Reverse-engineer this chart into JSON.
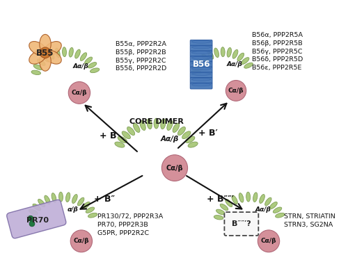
{
  "bg_color": "#ffffff",
  "scaffold_color": "#a8c878",
  "scaffold_color_dark": "#7a9a50",
  "scaffold_color_light": "#c8e098",
  "catalytic_color": "#d4909a",
  "catalytic_edge": "#b06878",
  "b55_color_light": "#f0b878",
  "b55_color_dark": "#c87830",
  "b55_edge": "#a85820",
  "b56_color": "#4878b8",
  "b56_edge": "#2858a0",
  "pr70_color": "#c0b0d8",
  "pr70_edge": "#8070a8",
  "pr70_dot": "#207840",
  "text_color": "#111111",
  "arrow_color": "#111111",
  "title_core": "CORE DIMER",
  "b55_label": "B55",
  "b56_label": "B56",
  "pr70_label": "PR70",
  "bppp_label": "B″″′?",
  "a_label": "Aα/β",
  "c_label": "Cα/β",
  "b55_genes": "B55α, PPP2R2A\nB55β, PPP2R2B\nB55γ, PPP2R2C\nB55δ, PPP2R2D",
  "b56_genes": "B56α, PPP2R5A\nB56β, PPP2R5B\nB56γ, PPP2R5C\nB56δ, PPP2R5D\nB56ε, PPP2R5E",
  "bpp_genes": "PR130/72, PPP2R3A\nPR70, PPP2R3B\nG5PR, PPP2R2C",
  "bppp_genes": "STRN, STRIATIN\nSTRN3, SG2NA",
  "plus_b": "+ B",
  "plus_bp": "+ B′",
  "plus_bpp": "+ B″",
  "plus_bppp": "+ B″″′"
}
